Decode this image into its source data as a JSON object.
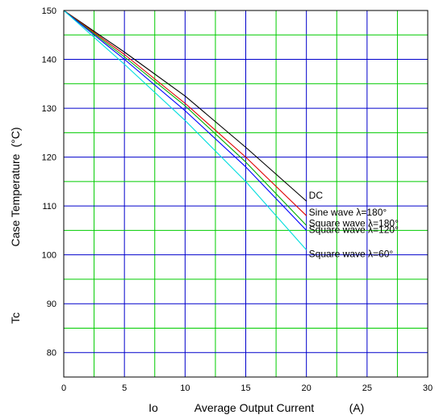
{
  "chart_data": {
    "type": "line",
    "title": "",
    "xlabel": {
      "symbol": "Io",
      "text": "Average Output Current",
      "unit": "(A)"
    },
    "ylabel": {
      "symbol": "Tc",
      "text": "Case Temperature",
      "unit": "(°C)"
    },
    "xlim": [
      0,
      30
    ],
    "ylim": [
      75,
      150
    ],
    "x_ticks": [
      0,
      5,
      10,
      15,
      20,
      25,
      30
    ],
    "y_ticks": [
      80,
      90,
      100,
      110,
      120,
      130,
      140,
      150
    ],
    "grid": true,
    "colors": {
      "major_grid": "#0000cc",
      "minor_grid": "#00cc00",
      "axes": "#000000"
    },
    "series": [
      {
        "name": "DC",
        "color": "#000000",
        "x": [
          0,
          5,
          10,
          15,
          20
        ],
        "y": [
          150,
          141.5,
          132.5,
          122,
          111
        ]
      },
      {
        "name": "Sine wave λ=180°",
        "color": "#e00000",
        "x": [
          0,
          5,
          10,
          15,
          20
        ],
        "y": [
          150,
          141,
          131,
          120,
          108
        ]
      },
      {
        "name": "Square wave λ=180°",
        "color": "#00b000",
        "x": [
          0,
          5,
          10,
          15,
          20
        ],
        "y": [
          150,
          140.5,
          130.5,
          119,
          106
        ]
      },
      {
        "name": "Square wave λ=120°",
        "color": "#0000ff",
        "x": [
          0,
          5,
          10,
          15,
          20
        ],
        "y": [
          150,
          140,
          129.5,
          118,
          105
        ]
      },
      {
        "name": "Square wave λ=60°",
        "color": "#00dddd",
        "x": [
          0,
          5,
          10,
          15,
          20
        ],
        "y": [
          150,
          139,
          127.5,
          115,
          101
        ]
      }
    ],
    "legend": [
      {
        "text": "DC",
        "anchor_x": 20,
        "anchor_y": 111
      },
      {
        "text": "Sine wave λ=180°",
        "anchor_x": 20,
        "anchor_y": 108
      },
      {
        "text": "Square wave λ=180°",
        "anchor_x": 20,
        "anchor_y": 106
      },
      {
        "text": "Square wave λ=120°",
        "anchor_x": 20,
        "anchor_y": 105
      },
      {
        "text": "Square wave λ=60°",
        "anchor_x": 20,
        "anchor_y": 101
      }
    ]
  }
}
